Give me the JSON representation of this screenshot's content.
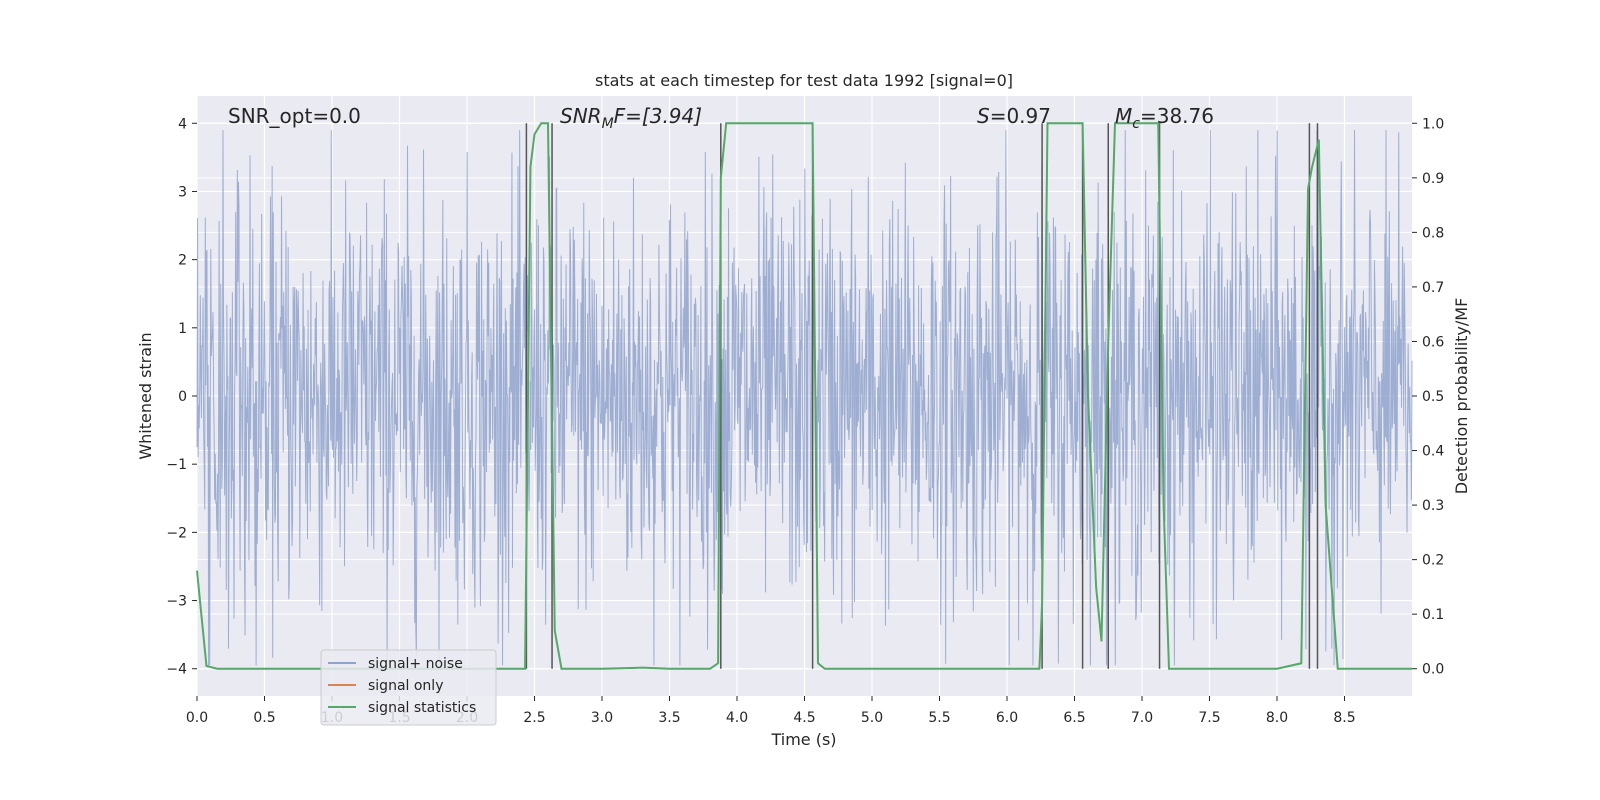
{
  "chart_data": {
    "type": "line",
    "title": "stats at each timestep for test data 1992 [signal=0]",
    "xlabel": "Time (s)",
    "ylabel": "Whitened strain",
    "y2label": "Detection probability/MF",
    "xlim": [
      0.0,
      9.0
    ],
    "ylim": [
      -4.4,
      4.4
    ],
    "y2lim": [
      -0.05,
      1.05
    ],
    "xticks": [
      "0.0",
      "0.5",
      "1.0",
      "1.5",
      "2.0",
      "2.5",
      "3.0",
      "3.5",
      "4.0",
      "4.5",
      "5.0",
      "5.5",
      "6.0",
      "6.5",
      "7.0",
      "7.5",
      "8.0",
      "8.5"
    ],
    "yticks": [
      "−4",
      "−3",
      "−2",
      "−1",
      "0",
      "1",
      "2",
      "3",
      "4"
    ],
    "y2ticks": [
      "0.0",
      "0.1",
      "0.2",
      "0.3",
      "0.4",
      "0.5",
      "0.6",
      "0.7",
      "0.8",
      "0.9",
      "1.0"
    ],
    "grid": true,
    "legend_position": "lower-left",
    "annotations": {
      "snr_opt": "SNR_opt=0.0",
      "snr_mf_base": "SNR",
      "snr_mf_sub": "M",
      "snr_mf_rest": "F=[3.94]",
      "s_base": "S",
      "s_rest": "=0.97",
      "mc_base": "M",
      "mc_sub": "c",
      "mc_rest": "=38.76"
    },
    "series": [
      {
        "name": "signal+ noise",
        "color": "#8fa3cc",
        "description_kind": "noise",
        "band_sigma": 1.0
      },
      {
        "name": "signal only",
        "color": "#dd8452",
        "x": [],
        "y": []
      },
      {
        "name": "signal statistics",
        "color": "#55a868",
        "axis": "right",
        "x": [
          0.0,
          0.07,
          0.15,
          0.5,
          1.0,
          1.5,
          2.0,
          2.3,
          2.43,
          2.47,
          2.5,
          2.55,
          2.6,
          2.65,
          2.7,
          2.75,
          3.0,
          3.3,
          3.5,
          3.8,
          3.86,
          3.88,
          3.92,
          4.0,
          4.5,
          4.56,
          4.6,
          4.65,
          5.0,
          5.5,
          6.0,
          6.24,
          6.26,
          6.3,
          6.5,
          6.56,
          6.6,
          6.66,
          6.7,
          6.75,
          6.8,
          7.0,
          7.12,
          7.16,
          7.2,
          7.25,
          7.5,
          8.0,
          8.18,
          8.23,
          8.26,
          8.31,
          8.36,
          8.45,
          9.0
        ],
        "y": [
          0.18,
          0.005,
          0.0,
          0.0,
          0.0,
          0.0,
          0.0,
          0.0,
          0.0,
          0.92,
          0.98,
          1.0,
          1.0,
          0.07,
          0.0,
          0.0,
          0.0,
          0.002,
          0.0,
          0.0,
          0.01,
          0.9,
          1.0,
          1.0,
          1.0,
          1.0,
          0.01,
          0.0,
          0.0,
          0.0,
          0.0,
          0.0,
          0.12,
          1.0,
          1.0,
          1.0,
          0.5,
          0.15,
          0.05,
          0.6,
          1.0,
          1.0,
          1.0,
          0.3,
          0.0,
          0.0,
          0.0,
          0.0,
          0.01,
          0.88,
          0.92,
          0.97,
          0.3,
          0.0,
          0.0
        ]
      }
    ],
    "event_lines_x": [
      2.44,
      2.63,
      3.88,
      4.56,
      6.26,
      6.56,
      6.75,
      7.13,
      8.24,
      8.3
    ]
  }
}
